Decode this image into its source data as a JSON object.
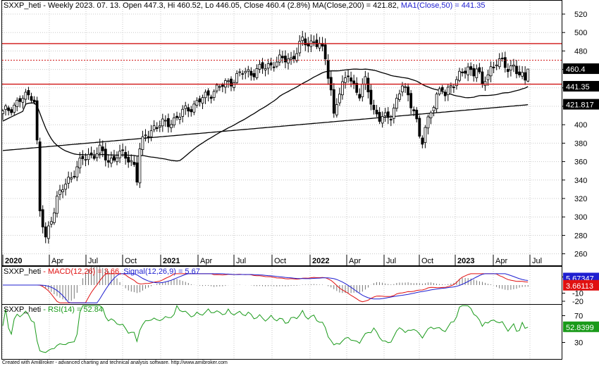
{
  "price_pane": {
    "symbol": "SXXP_heti",
    "header_prefix": " - Weekly 2023. 07. 13. Open 447.3, Hi 460.52, Lo 446.05, Close 460.4 (2.8%) ",
    "ma200_text": "MA(Close,200) = 421.82, ",
    "ma50_text": "MA1(Close,50) = 441.35",
    "y_ticks": [
      "520",
      "500",
      "480",
      "460",
      "440",
      "420",
      "400",
      "380",
      "360",
      "340",
      "320",
      "300",
      "280",
      "260"
    ],
    "badges": [
      {
        "label": "460.4",
        "value": 460.4,
        "color": "#000000"
      },
      {
        "label": "441.35",
        "value": 441.35,
        "color": "#000000"
      },
      {
        "label": "421.817",
        "value": 421.817,
        "color": "#000000"
      }
    ],
    "x_labels": [
      {
        "label": "2020",
        "bold": true
      },
      {
        "label": "Apr",
        "bold": false
      },
      {
        "label": "Jul",
        "bold": false
      },
      {
        "label": "Oct",
        "bold": false
      },
      {
        "label": "2021",
        "bold": true
      },
      {
        "label": "Apr",
        "bold": false
      },
      {
        "label": "Jul",
        "bold": false
      },
      {
        "label": "Oct",
        "bold": false
      },
      {
        "label": "2022",
        "bold": true
      },
      {
        "label": "Apr",
        "bold": false
      },
      {
        "label": "Jul",
        "bold": false
      },
      {
        "label": "Oct",
        "bold": false
      },
      {
        "label": "2023",
        "bold": true
      },
      {
        "label": "Apr",
        "bold": false
      },
      {
        "label": "Jul",
        "bold": false
      }
    ]
  },
  "macd_pane": {
    "symbol": "SXXP_heti",
    "macd_text": " - MACD(12,26) = 3.66, ",
    "signal_text": "Signal(12,26,9) = 5.67",
    "y_ticks": [
      "10",
      "-10",
      "-20"
    ],
    "badges": [
      {
        "label": "5.67347",
        "color": "#1f1fd0"
      },
      {
        "label": "3.66113",
        "color": "#e01010"
      }
    ]
  },
  "rsi_pane": {
    "symbol": "SXXP_heti",
    "rsi_text": " - RSI(14) = 52.84",
    "y_ticks": [
      "70",
      "30"
    ],
    "badges": [
      {
        "label": "52.8399",
        "color": "#1a9a1a"
      }
    ]
  },
  "footer": {
    "credit": "Created with AmiBroker - advanced charting and technical analysis software. http://www.amibroker.com"
  },
  "colors": {
    "grid": "#c8c8c8",
    "candle": "#000000",
    "ma": "#000000",
    "red_line": "#d01414",
    "macd": "#e01010",
    "signal": "#1f1fd0",
    "rsi": "#1a9a1a"
  },
  "chart_data": {
    "type": "candlestick",
    "title": "SXXP_heti - Weekly",
    "x_axis": [
      "2020",
      "Apr",
      "Jul",
      "Oct",
      "2021",
      "Apr",
      "Jul",
      "Oct",
      "2022",
      "Apr",
      "Jul",
      "Oct",
      "2023",
      "Apr",
      "Jul"
    ],
    "ylim": [
      255,
      530
    ],
    "last_bar": {
      "open": 447.3,
      "high": 460.52,
      "low": 446.05,
      "close": 460.4,
      "change_pct": 2.8
    },
    "horizontal_lines": [
      488,
      470,
      444
    ],
    "ma200_last": 421.82,
    "ma50_last": 441.35,
    "close_series": [
      {
        "x": "2020",
        "y": 418
      },
      {
        "x": "Mar 2020",
        "y": 280
      },
      {
        "x": "Apr",
        "y": 330
      },
      {
        "x": "Jul",
        "y": 368
      },
      {
        "x": "Oct",
        "y": 340
      },
      {
        "x": "2021",
        "y": 395
      },
      {
        "x": "Apr",
        "y": 428
      },
      {
        "x": "Jul",
        "y": 455
      },
      {
        "x": "Oct",
        "y": 470
      },
      {
        "x": "2022",
        "y": 485
      },
      {
        "x": "Apr",
        "y": 455
      },
      {
        "x": "Jul",
        "y": 410
      },
      {
        "x": "Oct",
        "y": 385
      },
      {
        "x": "2023",
        "y": 440
      },
      {
        "x": "Apr",
        "y": 465
      },
      {
        "x": "Jul",
        "y": 460.4
      }
    ],
    "indicators": {
      "macd": {
        "params": "12,26",
        "value": 3.66
      },
      "signal": {
        "params": "12,26,9",
        "value": 5.67
      },
      "rsi": {
        "params": "14",
        "value": 52.84
      }
    }
  }
}
